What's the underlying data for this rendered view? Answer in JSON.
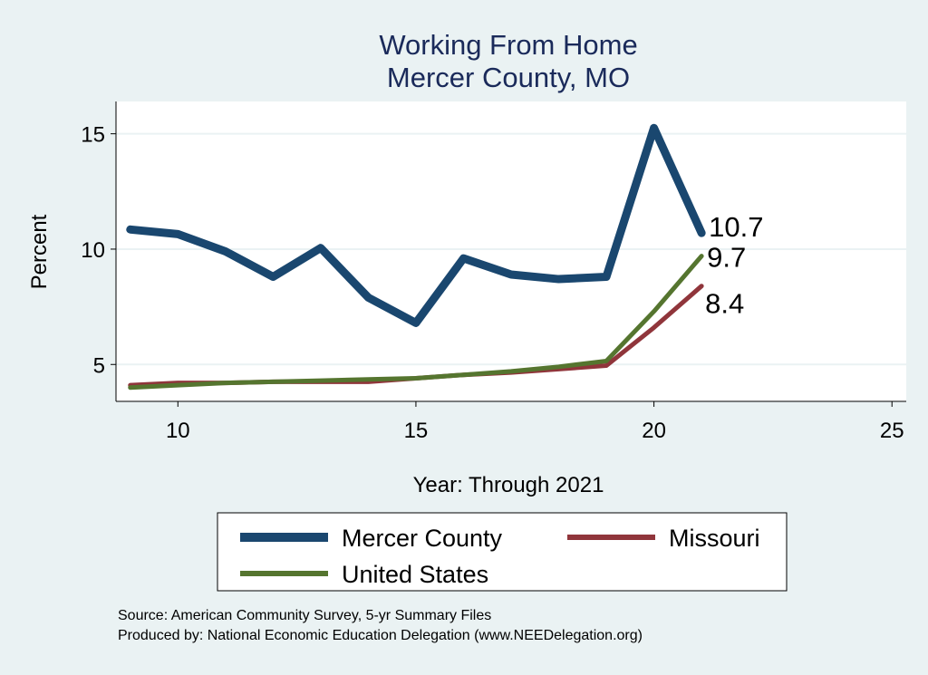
{
  "chart_data": {
    "type": "line",
    "title": "Working From Home",
    "subtitle": "Mercer County, MO",
    "xlabel": "Year: Through 2021",
    "ylabel": "Percent",
    "xlim": [
      8.7,
      25.3
    ],
    "ylim": [
      3.4,
      16.4
    ],
    "xticks": [
      10,
      15,
      20,
      25
    ],
    "yticks": [
      5,
      10,
      15
    ],
    "grid": true,
    "x": [
      9,
      10,
      11,
      12,
      13,
      14,
      15,
      16,
      17,
      18,
      19,
      20,
      21
    ],
    "series": [
      {
        "name": "Mercer County",
        "color": "#1a476f",
        "width": 9,
        "values": [
          10.85,
          10.65,
          9.9,
          8.8,
          10.05,
          7.9,
          6.8,
          9.6,
          8.9,
          8.7,
          8.8,
          15.25,
          10.7
        ],
        "end_label": "10.7"
      },
      {
        "name": "Missouri",
        "color": "#90353b",
        "width": 5,
        "values": [
          4.1,
          4.2,
          4.2,
          4.25,
          4.25,
          4.25,
          4.4,
          4.55,
          4.65,
          4.8,
          4.95,
          6.6,
          8.4
        ],
        "end_label": "8.4"
      },
      {
        "name": "United States",
        "color": "#55752f",
        "width": 5,
        "values": [
          4.0,
          4.1,
          4.2,
          4.25,
          4.3,
          4.35,
          4.4,
          4.55,
          4.7,
          4.9,
          5.15,
          7.3,
          9.7
        ],
        "end_label": "9.7"
      }
    ],
    "legend_position": "bottom",
    "notes": [
      "Source: American Community Survey, 5-yr Summary Files",
      "Produced by: National Economic Education Delegation (www.NEEDelegation.org)"
    ]
  }
}
